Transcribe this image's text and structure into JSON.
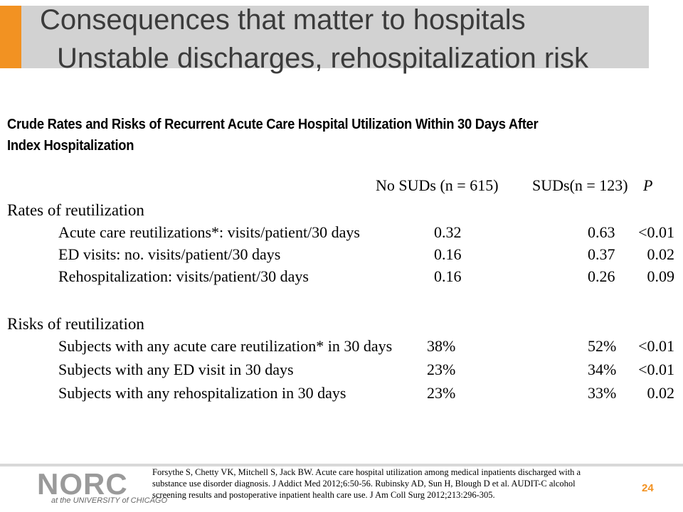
{
  "slide": {
    "title_line1": "Consequences that matter to hospitals",
    "title_line2": "Unstable discharges, rehospitalization risk",
    "page_number": "24",
    "accent_color": "#f29222"
  },
  "table": {
    "title": "Crude Rates and Risks of Recurrent Acute Care Hospital Utilization Within 30 Days After Index Hospitalization",
    "col_no_suds": "No SUDs (n = 615)",
    "col_suds": "SUDs(n = 123)",
    "col_p": "P",
    "sections": [
      {
        "heading": "Rates of reutilization",
        "rows": [
          {
            "label": "Acute care reutilizations*: visits/patient/30 days",
            "no_suds": "0.32",
            "suds": "0.63",
            "p": "<0.01"
          },
          {
            "label": "ED visits: no. visits/patient/30 days",
            "no_suds": "0.16",
            "suds": "0.37",
            "p": "0.02"
          },
          {
            "label": "Rehospitalization: visits/patient/30 days",
            "no_suds": "0.16",
            "suds": "0.26",
            "p": "0.09"
          }
        ]
      },
      {
        "heading": "Risks of reutilization",
        "rows": [
          {
            "label": "Subjects with any acute care reutilization* in 30 days",
            "no_suds": "38%",
            "suds": "52%",
            "p": "<0.01"
          },
          {
            "label": "Subjects with any ED visit in 30 days",
            "no_suds": "23%",
            "suds": "34%",
            "p": "<0.01"
          },
          {
            "label": "Subjects with any rehospitalization in 30 days",
            "no_suds": "23%",
            "suds": "33%",
            "p": "0.02"
          }
        ]
      }
    ]
  },
  "footer": {
    "logo_text": "NORC",
    "logo_subtext": "at the UNIVERSITY of CHICAGO",
    "citation": "Forsythe S, Chetty VK, Mitchell S, Jack BW. Acute care hospital utilization among medical inpatients discharged with a substance use disorder diagnosis. J Addict Med 2012;6:50-56. Rubinsky AD, Sun H, Blough D et al. AUDIT-C alcohol screening results and postoperative inpatient health care use. J Am Coll Surg 2012;213:296-305."
  }
}
